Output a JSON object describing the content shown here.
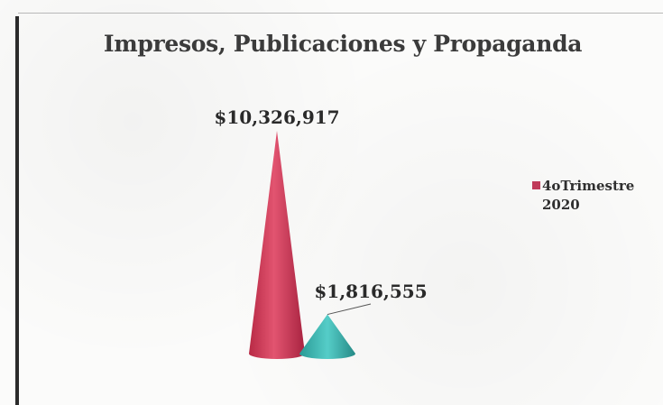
{
  "chart_data": {
    "type": "bar",
    "shape": "cone",
    "title": "Impresos, Publicaciones y Propaganda",
    "categories": [
      "",
      ""
    ],
    "series": [
      {
        "name": "4oTrimestre 2020",
        "values": [
          10326917,
          1816555
        ],
        "labels": [
          "$10,326,917",
          "$1,816,555"
        ]
      }
    ],
    "colors": [
      "#d83a55",
      "#3bbcb6"
    ],
    "legend_color": "#c03a5a",
    "legend_position": "right",
    "grid": false,
    "ylim": [
      0,
      10326917
    ]
  }
}
